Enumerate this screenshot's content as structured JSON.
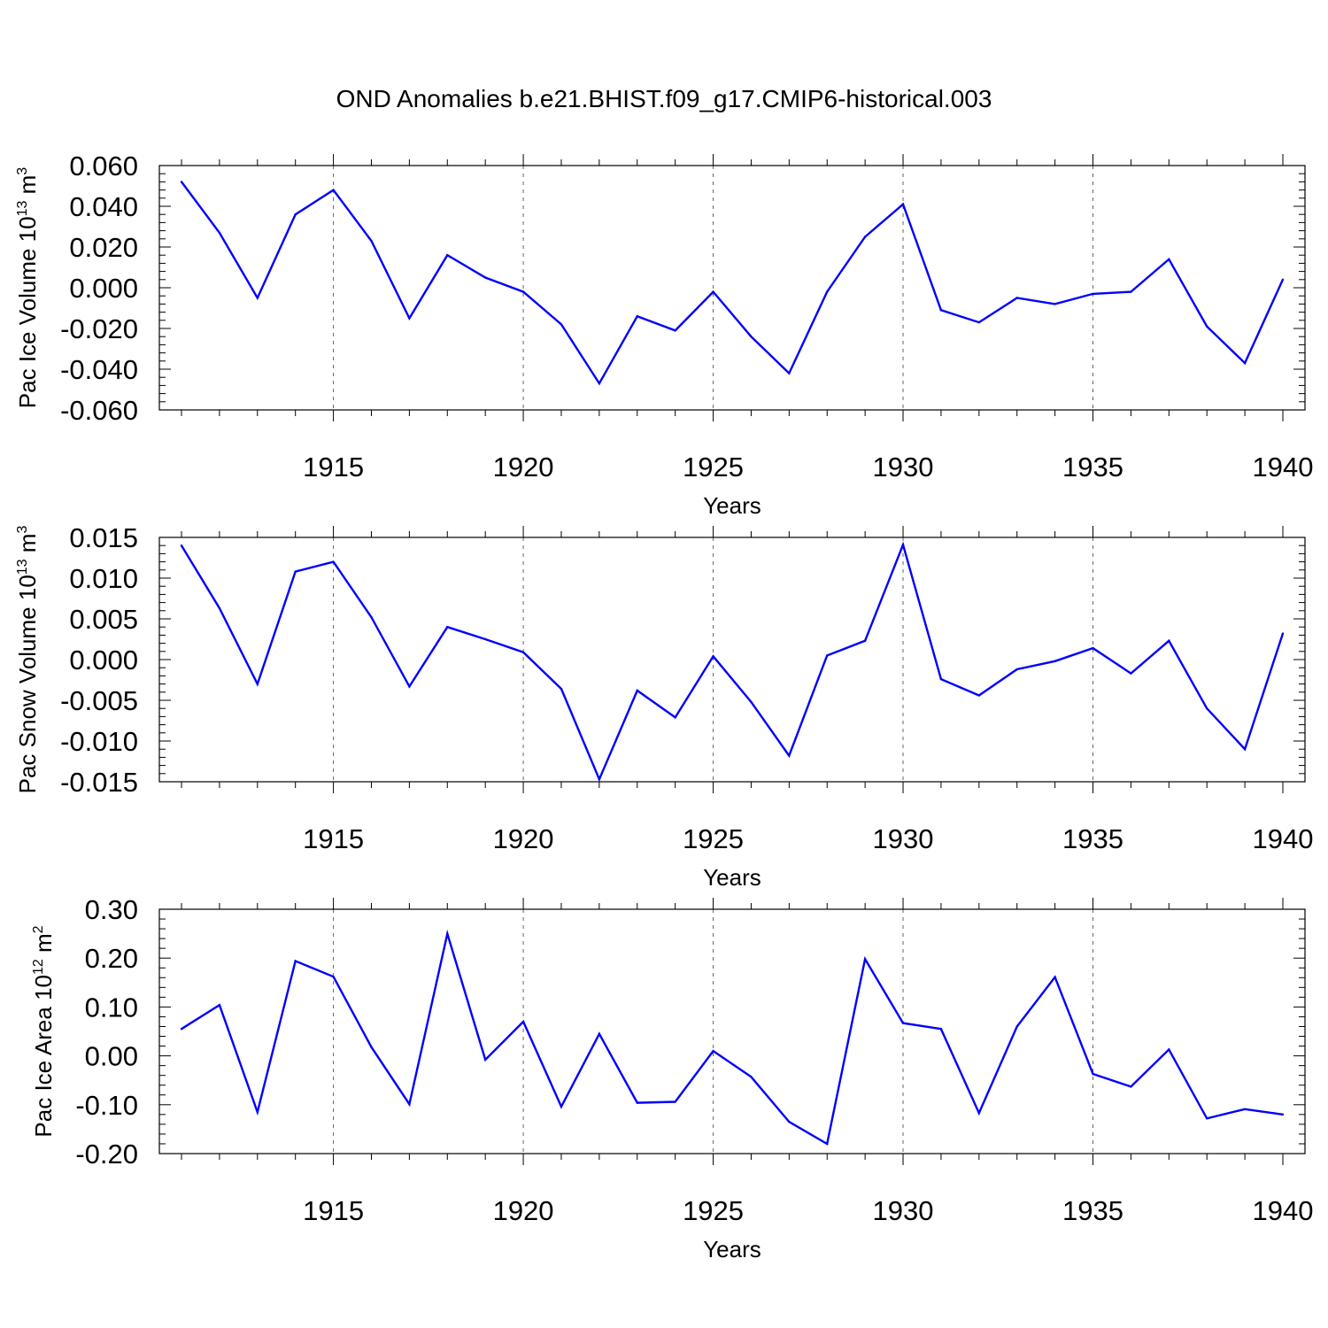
{
  "title": "OND Anomalies b.e21.BHIST.f09_g17.CMIP6-historical.003",
  "colors": {
    "line": "#0000ff",
    "axis": "#000000",
    "grid": "#666666"
  },
  "chart_data": [
    {
      "type": "line",
      "title": "OND Anomalies b.e21.BHIST.f09_g17.CMIP6-historical.003",
      "xlabel": "Years",
      "ylabel": "Pac Ice Volume 10",
      "ylabel_sup": "13",
      "ylabel_unit": "m",
      "ylabel_unit_sup": "3",
      "xlim": [
        1911,
        1940
      ],
      "ylim": [
        -0.06,
        0.06
      ],
      "yticks": [
        -0.06,
        -0.04,
        -0.02,
        0.0,
        0.02,
        0.04,
        0.06
      ],
      "ytick_labels": [
        "-0.060",
        "-0.040",
        "-0.020",
        "0.000",
        "0.020",
        "0.040",
        "0.060"
      ],
      "xticks": [
        1915,
        1920,
        1925,
        1930,
        1935,
        1940
      ],
      "xtick_labels": [
        "1915",
        "1920",
        "1925",
        "1930",
        "1935",
        "1940"
      ],
      "grid": "vertical dashed at labeled years",
      "series": [
        {
          "name": "Pac Ice Volume",
          "x": [
            1911,
            1912,
            1913,
            1914,
            1915,
            1916,
            1917,
            1918,
            1919,
            1920,
            1921,
            1922,
            1923,
            1924,
            1925,
            1926,
            1927,
            1928,
            1929,
            1930,
            1931,
            1932,
            1933,
            1934,
            1935,
            1936,
            1937,
            1938,
            1939,
            1940
          ],
          "values": [
            0.052,
            0.027,
            -0.005,
            0.036,
            0.048,
            0.023,
            -0.015,
            0.016,
            0.005,
            -0.002,
            -0.018,
            -0.047,
            -0.014,
            -0.021,
            -0.002,
            -0.024,
            -0.042,
            -0.002,
            0.025,
            0.041,
            -0.011,
            -0.017,
            -0.005,
            -0.008,
            -0.003,
            -0.002,
            0.014,
            -0.019,
            -0.037,
            0.004
          ]
        }
      ]
    },
    {
      "type": "line",
      "xlabel": "Years",
      "ylabel": "Pac Snow Volume 10",
      "ylabel_sup": "13",
      "ylabel_unit": "m",
      "ylabel_unit_sup": "3",
      "xlim": [
        1911,
        1940
      ],
      "ylim": [
        -0.015,
        0.015
      ],
      "yticks": [
        -0.015,
        -0.01,
        -0.005,
        0.0,
        0.005,
        0.01,
        0.015
      ],
      "ytick_labels": [
        "-0.015",
        "-0.010",
        "-0.005",
        "0.000",
        "0.005",
        "0.010",
        "0.015"
      ],
      "xticks": [
        1915,
        1920,
        1925,
        1930,
        1935,
        1940
      ],
      "xtick_labels": [
        "1915",
        "1920",
        "1925",
        "1930",
        "1935",
        "1940"
      ],
      "grid": "vertical dashed at labeled years",
      "series": [
        {
          "name": "Pac Snow Volume",
          "x": [
            1911,
            1912,
            1913,
            1914,
            1915,
            1916,
            1917,
            1918,
            1919,
            1920,
            1921,
            1922,
            1923,
            1924,
            1925,
            1926,
            1927,
            1928,
            1929,
            1930,
            1931,
            1932,
            1933,
            1934,
            1935,
            1936,
            1937,
            1938,
            1939,
            1940
          ],
          "values": [
            0.014,
            0.0063,
            -0.003,
            0.0108,
            0.012,
            0.0052,
            -0.0033,
            0.004,
            0.0025,
            0.0009,
            -0.0036,
            -0.0147,
            -0.0038,
            -0.0071,
            0.0004,
            -0.0052,
            -0.0118,
            0.0005,
            0.0023,
            0.0141,
            -0.0024,
            -0.0044,
            -0.0012,
            -0.0002,
            0.0014,
            -0.0017,
            0.0023,
            -0.006,
            -0.011,
            0.0032
          ]
        }
      ]
    },
    {
      "type": "line",
      "xlabel": "Years",
      "ylabel": "Pac Ice Area 10",
      "ylabel_sup": "12",
      "ylabel_unit": "m",
      "ylabel_unit_sup": "2",
      "xlim": [
        1911,
        1940
      ],
      "ylim": [
        -0.2,
        0.3
      ],
      "yticks": [
        -0.2,
        -0.1,
        0.0,
        0.1,
        0.2,
        0.3
      ],
      "ytick_labels": [
        "-0.20",
        "-0.10",
        "0.00",
        "0.10",
        "0.20",
        "0.30"
      ],
      "xticks": [
        1915,
        1920,
        1925,
        1930,
        1935,
        1940
      ],
      "xtick_labels": [
        "1915",
        "1920",
        "1925",
        "1930",
        "1935",
        "1940"
      ],
      "grid": "vertical dashed at labeled years",
      "series": [
        {
          "name": "Pac Ice Area",
          "x": [
            1911,
            1912,
            1913,
            1914,
            1915,
            1916,
            1917,
            1918,
            1919,
            1920,
            1921,
            1922,
            1923,
            1924,
            1925,
            1926,
            1927,
            1928,
            1929,
            1930,
            1931,
            1932,
            1933,
            1934,
            1935,
            1936,
            1937,
            1938,
            1939,
            1940
          ],
          "values": [
            0.055,
            0.104,
            -0.115,
            0.194,
            0.162,
            0.018,
            -0.099,
            0.25,
            -0.008,
            0.07,
            -0.104,
            0.045,
            -0.096,
            -0.094,
            0.01,
            -0.043,
            -0.135,
            -0.18,
            0.198,
            0.067,
            0.055,
            -0.117,
            0.06,
            0.161,
            -0.037,
            -0.063,
            0.013,
            -0.128,
            -0.109,
            -0.12
          ]
        }
      ]
    }
  ]
}
